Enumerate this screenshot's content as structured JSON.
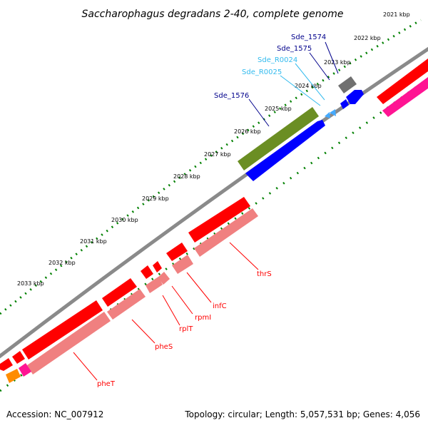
{
  "title": "Saccharophagus degradans 2-40, complete genome",
  "kbp_labels": [
    "2021 kbp",
    "2022 kbp",
    "2023 kbp",
    "2024 kbp",
    "2025 kbp",
    "2026 kbp",
    "2027 kbp",
    "2028 kbp",
    "2029 kbp",
    "2030 kbp",
    "2031 kbp",
    "2032 kbp",
    "2033 kbp"
  ],
  "gene_labels": {
    "sde_1574": "Sde_1574",
    "sde_1575": "Sde_1575",
    "sde_r0024": "Sde_R0024",
    "sde_r0025": "Sde_R0025",
    "sde_1576": "Sde_1576",
    "thrs": "thrS",
    "infc": "infC",
    "rpmi": "rpmI",
    "rplt": "rplT",
    "phes": "pheS",
    "phet": "pheT"
  },
  "footer": {
    "accession": "Accession: NC_007912",
    "summary": "Topology: circular; Length: 5,057,531 bp; Genes: 4,056"
  },
  "colors": {
    "cds": "#ff0000",
    "cds_light": "#f08080",
    "hypothetical": "#0000ff",
    "rna": "#44aaff",
    "olive": "#6b8e23",
    "gray": "#707070",
    "pink": "#ff1493",
    "orange": "#ff8c00",
    "label_dark": "#00008b",
    "label_light": "#33bbee",
    "tick": "#008000"
  }
}
